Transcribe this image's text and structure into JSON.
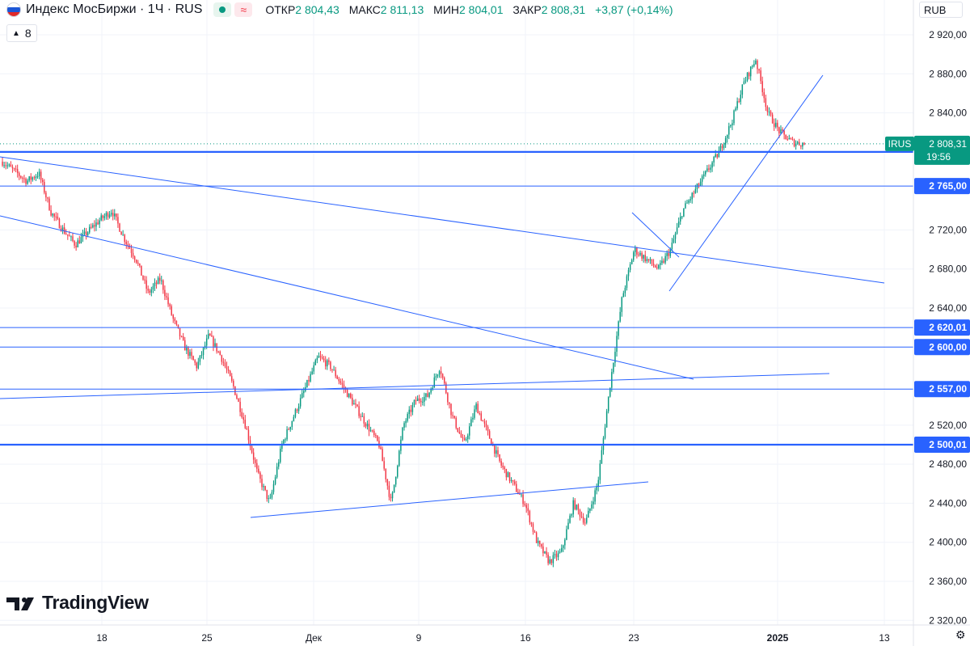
{
  "header": {
    "title": "Индекс МосБиржи · 1Ч · RUS",
    "ohlc": [
      {
        "key": "ОТКР",
        "value": "2 804,43"
      },
      {
        "key": "МАКС",
        "value": "2 811,13"
      },
      {
        "key": "МИН",
        "value": "2 804,01"
      },
      {
        "key": "ЗАКР",
        "value": "2 808,31"
      }
    ],
    "change": "+3,87 (+0,14%)",
    "layers_count": "8"
  },
  "currency": "RUB",
  "brand": "TradingView",
  "colors": {
    "up": "#089981",
    "down": "#f23645",
    "line": "#2962ff",
    "axis_text": "#131722"
  },
  "icons": [
    "flag-icon",
    "eye-dot-icon",
    "wave-icon",
    "chevron-icon",
    "tradingview-logo-icon",
    "settings-gear-icon"
  ],
  "chart_data": {
    "type": "candlestick",
    "symbol": "IRUS",
    "last_price": "2 808,31",
    "countdown": "19:56",
    "ylim": [
      2320,
      2940
    ],
    "y_ticks": [
      {
        "value": 2320,
        "label": "2 320,00"
      },
      {
        "value": 2360,
        "label": "2 360,00"
      },
      {
        "value": 2400,
        "label": "2 400,00"
      },
      {
        "value": 2440,
        "label": "2 440,00"
      },
      {
        "value": 2480,
        "label": "2 480,00"
      },
      {
        "value": 2520,
        "label": "2 520,00"
      },
      {
        "value": 2640,
        "label": "2 640,00"
      },
      {
        "value": 2680,
        "label": "2 680,00"
      },
      {
        "value": 2720,
        "label": "2 720,00"
      },
      {
        "value": 2840,
        "label": "2 840,00"
      },
      {
        "value": 2880,
        "label": "2 880,00"
      },
      {
        "value": 2920,
        "label": "2 920,00"
      }
    ],
    "x_ticks": [
      "18",
      "25",
      "Дек",
      "9",
      "16",
      "23",
      "2025",
      "13"
    ],
    "levels": [
      {
        "value": 2800.01,
        "label": "2 800,01",
        "bold": true
      },
      {
        "value": 2765.0,
        "label": "2 765,00",
        "bold": false
      },
      {
        "value": 2620.01,
        "label": "2 620,01",
        "bold": false
      },
      {
        "value": 2600.0,
        "label": "2 600,00",
        "bold": false
      },
      {
        "value": 2557.0,
        "label": "2 557,00",
        "bold": false
      },
      {
        "value": 2500.01,
        "label": "2 500,01",
        "bold": true
      }
    ],
    "price_path": [
      [
        "Ноя 11",
        2790
      ],
      [
        "Ноя 12",
        2780
      ],
      [
        "Ноя 12",
        2770
      ],
      [
        "Ноя 13",
        2778
      ],
      [
        "Ноя 14",
        2738
      ],
      [
        "Ноя 15",
        2720
      ],
      [
        "Ноя 16",
        2705
      ],
      [
        "Ноя 17",
        2718
      ],
      [
        "Ноя 18",
        2730
      ],
      [
        "Ноя 19",
        2740
      ],
      [
        "Ноя 19",
        2712
      ],
      [
        "Ноя 20",
        2690
      ],
      [
        "Ноя 21",
        2655
      ],
      [
        "Ноя 21",
        2670
      ],
      [
        "Ноя 22",
        2630
      ],
      [
        "Ноя 23",
        2600
      ],
      [
        "Ноя 24",
        2580
      ],
      [
        "Ноя 25",
        2612
      ],
      [
        "Ноя 25",
        2590
      ],
      [
        "Ноя 26",
        2560
      ],
      [
        "Ноя 27",
        2520
      ],
      [
        "Ноя 28",
        2470
      ],
      [
        "Ноя 28",
        2440
      ],
      [
        "Ноя 29",
        2500
      ],
      [
        "Ноя 30",
        2530
      ],
      [
        "Дек 01",
        2560
      ],
      [
        "Дек 01",
        2590
      ],
      [
        "Дек 02",
        2580
      ],
      [
        "Дек 03",
        2560
      ],
      [
        "Дек 04",
        2540
      ],
      [
        "Дек 05",
        2520
      ],
      [
        "Дек 06",
        2500
      ],
      [
        "Дек 07",
        2440
      ],
      [
        "Дек 08",
        2520
      ],
      [
        "Дек 08",
        2545
      ],
      [
        "Дек 09",
        2550
      ],
      [
        "Дек 10",
        2580
      ],
      [
        "Дек 11",
        2530
      ],
      [
        "Дек 12",
        2500
      ],
      [
        "Дек 13",
        2540
      ],
      [
        "Дек 14",
        2510
      ],
      [
        "Дек 15",
        2480
      ],
      [
        "Дек 16",
        2460
      ],
      [
        "Дек 17",
        2440
      ],
      [
        "Дек 18",
        2400
      ],
      [
        "Дек 19",
        2380
      ],
      [
        "Дек 20",
        2390
      ],
      [
        "Дек 21",
        2440
      ],
      [
        "Дек 22",
        2420
      ],
      [
        "Дек 22",
        2460
      ],
      [
        "Дек 23",
        2560
      ],
      [
        "Дек 23",
        2650
      ],
      [
        "Дек 24",
        2700
      ],
      [
        "Дек 25",
        2690
      ],
      [
        "Дек 26",
        2680
      ],
      [
        "Дек 27",
        2700
      ],
      [
        "Дек 28",
        2740
      ],
      [
        "Дек 29",
        2760
      ],
      [
        "Дек 30",
        2780
      ],
      [
        "Дек 31",
        2800
      ],
      [
        "Янв 01",
        2830
      ],
      [
        "Янв 02",
        2870
      ],
      [
        "Янв 03",
        2895
      ],
      [
        "Янв 03",
        2840
      ],
      [
        "Янв 04",
        2820
      ],
      [
        "Янв 05",
        2810
      ],
      [
        "Янв 06",
        2808
      ]
    ]
  }
}
